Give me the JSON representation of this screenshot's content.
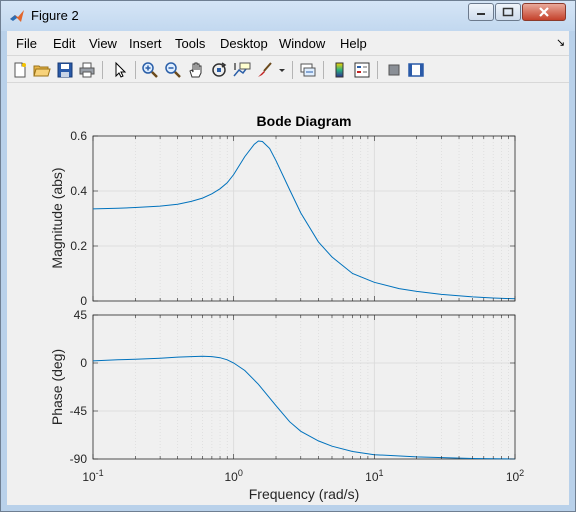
{
  "window": {
    "title": "Figure 2"
  },
  "menubar": {
    "items": [
      {
        "label": "File"
      },
      {
        "label": "Edit"
      },
      {
        "label": "View"
      },
      {
        "label": "Insert"
      },
      {
        "label": "Tools"
      },
      {
        "label": "Desktop"
      },
      {
        "label": "Window"
      },
      {
        "label": "Help"
      }
    ]
  },
  "toolbar": {
    "icons": [
      "new-figure-icon",
      "open-file-icon",
      "save-icon",
      "print-icon",
      "edit-plot-arrow-icon",
      "zoom-in-icon",
      "zoom-out-icon",
      "pan-hand-icon",
      "rotate-3d-icon",
      "data-cursor-icon",
      "brush-icon",
      "brush-dropdown-icon",
      "link-plot-icon",
      "colorbar-icon",
      "legend-icon",
      "hide-plot-tools-icon",
      "show-plot-tools-icon"
    ]
  },
  "plot": {
    "title": "Bode Diagram",
    "xlabel": "Frequency  (rad/s)",
    "magnitude_ylabel": "Magnitude (abs)",
    "phase_ylabel": "Phase (deg)",
    "magnitude_ticks": [
      "0.6",
      "0.4",
      "0.2",
      "0"
    ],
    "phase_ticks": [
      "45",
      "0",
      "-45",
      "-90"
    ],
    "x_ticks": [
      {
        "base": "10",
        "exp": "-1"
      },
      {
        "base": "10",
        "exp": "0"
      },
      {
        "base": "10",
        "exp": "1"
      },
      {
        "base": "10",
        "exp": "2"
      }
    ]
  },
  "chart_data": {
    "type": "line",
    "title": "Bode Diagram",
    "xlabel": "Frequency  (rad/s)",
    "xscale": "log",
    "xlim": [
      0.1,
      100
    ],
    "grid": true,
    "subplots": [
      {
        "ylabel": "Magnitude (abs)",
        "ylim": [
          0,
          0.6
        ],
        "yticks": [
          0,
          0.2,
          0.4,
          0.6
        ],
        "series": [
          {
            "color": "#0072bd",
            "x": [
              0.1,
              0.15,
              0.2,
              0.3,
              0.4,
              0.5,
              0.6,
              0.7,
              0.8,
              0.9,
              1.0,
              1.2,
              1.4,
              1.5,
              1.6,
              1.8,
              2.0,
              2.5,
              3,
              4,
              5,
              7,
              10,
              15,
              20,
              30,
              50,
              70,
              100
            ],
            "y": [
              0.335,
              0.337,
              0.34,
              0.345,
              0.352,
              0.362,
              0.374,
              0.39,
              0.408,
              0.43,
              0.46,
              0.525,
              0.57,
              0.582,
              0.58,
              0.555,
              0.51,
              0.405,
              0.32,
              0.215,
              0.16,
              0.1,
              0.068,
              0.045,
              0.035,
              0.024,
              0.015,
              0.011,
              0.008
            ]
          }
        ]
      },
      {
        "ylabel": "Phase (deg)",
        "ylim": [
          -90,
          45
        ],
        "yticks": [
          -90,
          -45,
          0,
          45
        ],
        "series": [
          {
            "color": "#0072bd",
            "x": [
              0.1,
              0.15,
              0.2,
              0.3,
              0.4,
              0.5,
              0.6,
              0.7,
              0.8,
              0.9,
              1.0,
              1.2,
              1.5,
              2.0,
              2.5,
              3,
              4,
              5,
              7,
              10,
              20,
              50,
              100
            ],
            "y": [
              2,
              3,
              3.5,
              4.5,
              5.5,
              6,
              6.3,
              6,
              5,
              3,
              0,
              -7,
              -20,
              -40,
              -55,
              -64,
              -73,
              -78,
              -83,
              -86,
              -88,
              -89.5,
              -90
            ]
          }
        ]
      }
    ]
  }
}
